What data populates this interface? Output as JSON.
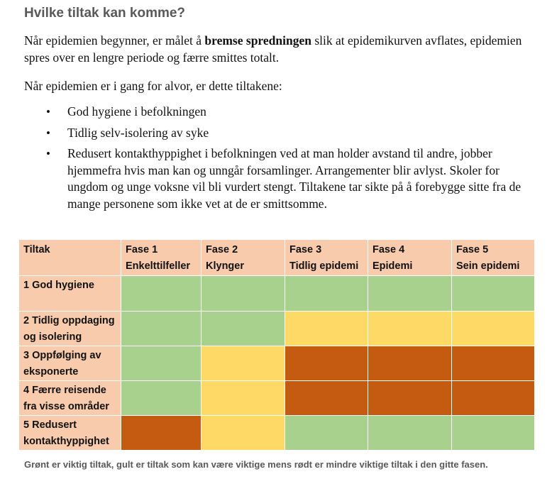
{
  "heading": "Hvilke tiltak kan komme?",
  "intro": {
    "before": "Når epidemien begynner, er målet å ",
    "bold": "bremse spredningen",
    "after": " slik at epidemikurven avflates, epidemien spres over en lengre periode og færre smittes totalt."
  },
  "lead": "Når epidemien er i gang for alvor, er dette tiltakene:",
  "bullets": [
    "God hygiene i befolkningen",
    "Tidlig selv-isolering av syke",
    "Redusert kontakthyppighet i befolkningen ved at man holder avstand til andre, jobber hjemmefra hvis man kan og unngår forsamlinger. Arrangementer blir avlyst. Skoler for ungdom og unge voksne vil bli vurdert stengt. Tiltakene tar sikte på å forebygge sitte fra de mange personene som ikke vet at de er smittsomme."
  ],
  "table": {
    "corner": "Tiltak",
    "phases": [
      {
        "title": "Fase 1",
        "subtitle": "Enkelttilfeller"
      },
      {
        "title": "Fase 2",
        "subtitle": "Klynger"
      },
      {
        "title": "Fase 3",
        "subtitle": "Tidlig epidemi"
      },
      {
        "title": "Fase 4",
        "subtitle": "Epidemi"
      },
      {
        "title": "Fase 5",
        "subtitle": "Sein epidemi"
      }
    ],
    "rows": [
      {
        "label": "1 God hygiene",
        "levels": [
          "green",
          "green",
          "green",
          "green",
          "green"
        ]
      },
      {
        "label": "2 Tidlig oppdaging og isolering",
        "levels": [
          "green",
          "green",
          "yellow",
          "yellow",
          "yellow"
        ]
      },
      {
        "label": "3 Oppfølging av eksponerte",
        "levels": [
          "green",
          "yellow",
          "red",
          "red",
          "red"
        ]
      },
      {
        "label": "4 Færre reisende fra visse områder",
        "levels": [
          "green",
          "yellow",
          "red",
          "red",
          "red"
        ]
      },
      {
        "label": "5 Redusert kontakthyppighet",
        "levels": [
          "red",
          "yellow",
          "green",
          "green",
          "green"
        ]
      }
    ],
    "colors": {
      "header": "#f8cbad",
      "green": "#a9d18e",
      "yellow": "#ffd966",
      "red": "#c55a11"
    }
  },
  "footnote": "Grønt er viktig tiltak, gult er tiltak som kan være viktige mens rødt er mindre viktige tiltak i den gitte fasen."
}
